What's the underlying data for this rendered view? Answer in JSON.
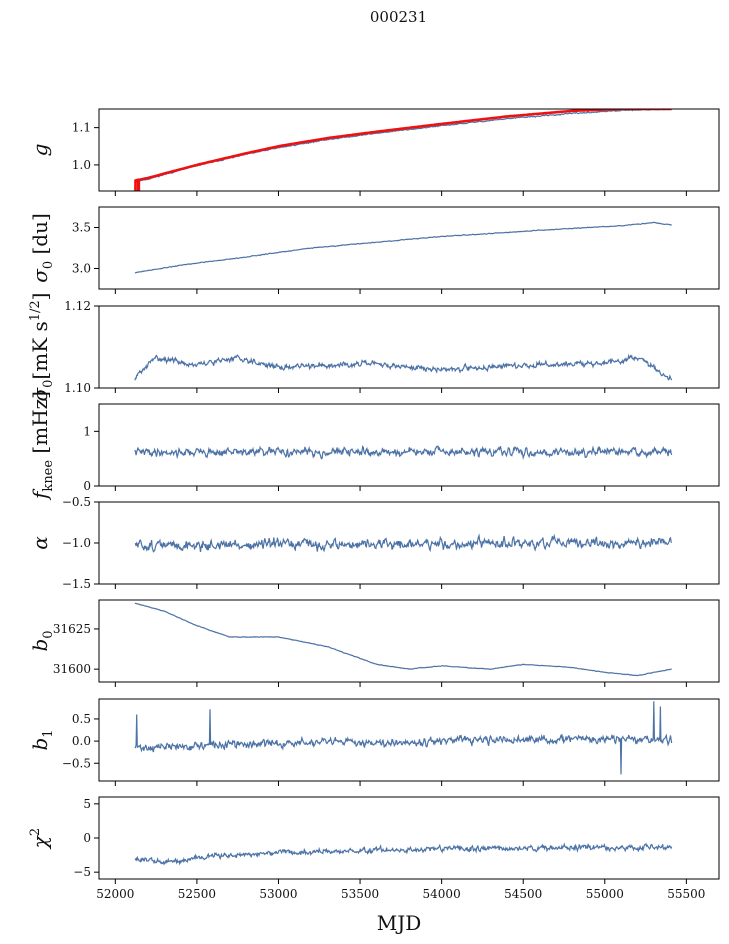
{
  "figure": {
    "title": "000231"
  },
  "colors": {
    "line": "#4c72a6",
    "red_overlay": "#ee1111",
    "axis": "#000000"
  },
  "chart_data": {
    "type": "line",
    "shared_x": {
      "label": "MJD",
      "range": [
        51900,
        55700
      ],
      "ticks": [
        52000,
        52500,
        53000,
        53500,
        54000,
        54500,
        55000,
        55500
      ],
      "tick_labels": [
        "52000",
        "52500",
        "53000",
        "53500",
        "54000",
        "54500",
        "55000",
        "55500"
      ],
      "data_start": 52120,
      "data_end": 55410
    },
    "panels": [
      {
        "id": "g",
        "ylabel": "g",
        "ylabel_html": "<tspan font-style='italic'>g</tspan>",
        "ylim": [
          0.93,
          1.15
        ],
        "yticks": [
          1.0,
          1.1
        ],
        "ytick_labels": [
          "1.0",
          "1.1"
        ],
        "trend": [
          [
            52120,
            0.955
          ],
          [
            52200,
            0.962
          ],
          [
            52500,
            0.998
          ],
          [
            52800,
            1.028
          ],
          [
            53000,
            1.046
          ],
          [
            53300,
            1.068
          ],
          [
            53600,
            1.085
          ],
          [
            54000,
            1.105
          ],
          [
            54400,
            1.124
          ],
          [
            54800,
            1.138
          ],
          [
            55100,
            1.146
          ],
          [
            55410,
            1.15
          ]
        ],
        "noise": 0.002,
        "seed": 11,
        "red_overlay": {
          "trend": [
            [
              52120,
              0.958
            ],
            [
              52200,
              0.965
            ],
            [
              52500,
              1.0
            ],
            [
              52800,
              1.031
            ],
            [
              53000,
              1.05
            ],
            [
              53300,
              1.072
            ],
            [
              53600,
              1.089
            ],
            [
              54000,
              1.11
            ],
            [
              54400,
              1.13
            ],
            [
              54800,
              1.145
            ],
            [
              55100,
              1.15
            ],
            [
              55410,
              1.15
            ]
          ],
          "spike": {
            "x": 52140,
            "y_from": 0.93,
            "y_to": 0.96
          }
        }
      },
      {
        "id": "sigma0_du",
        "ylabel": "σ0 [du]",
        "ylim": [
          2.75,
          3.75
        ],
        "yticks": [
          3.0,
          3.5
        ],
        "ytick_labels": [
          "3.0",
          "3.5"
        ],
        "trend": [
          [
            52120,
            2.95
          ],
          [
            52400,
            3.04
          ],
          [
            52800,
            3.14
          ],
          [
            53200,
            3.25
          ],
          [
            53600,
            3.32
          ],
          [
            54000,
            3.39
          ],
          [
            54400,
            3.44
          ],
          [
            54800,
            3.49
          ],
          [
            55100,
            3.52
          ],
          [
            55300,
            3.56
          ],
          [
            55410,
            3.53
          ]
        ],
        "noise": 0.006,
        "seed": 21
      },
      {
        "id": "sigma0_mK",
        "ylabel": "σ0[mK s^1/2]",
        "ylim": [
          1.1,
          1.12
        ],
        "yticks": [
          1.1,
          1.12
        ],
        "ytick_labels": [
          "1.10",
          "1.12"
        ],
        "trend": [
          [
            52120,
            1.1025
          ],
          [
            52250,
            1.1075
          ],
          [
            52500,
            1.1055
          ],
          [
            52750,
            1.1075
          ],
          [
            53000,
            1.105
          ],
          [
            53500,
            1.106
          ],
          [
            54000,
            1.1045
          ],
          [
            54500,
            1.1055
          ],
          [
            55000,
            1.106
          ],
          [
            55200,
            1.1075
          ],
          [
            55410,
            1.102
          ]
        ],
        "noise": 0.0009,
        "seed": 31
      },
      {
        "id": "fknee",
        "ylabel": "f_knee [mHz]",
        "ylim": [
          0,
          1.5
        ],
        "yticks": [
          0,
          1
        ],
        "ytick_labels": [
          "0",
          "1"
        ],
        "trend": [
          [
            52120,
            0.62
          ],
          [
            55410,
            0.62
          ]
        ],
        "noise": 0.1,
        "seed": 41
      },
      {
        "id": "alpha",
        "ylabel": "α",
        "ylim": [
          -1.5,
          -0.5
        ],
        "yticks": [
          -1.5,
          -1.0,
          -0.5
        ],
        "ytick_labels": [
          "−1.5",
          "−1.0",
          "−0.5"
        ],
        "trend": [
          [
            52120,
            -1.03
          ],
          [
            55410,
            -1.0
          ]
        ],
        "noise": 0.085,
        "seed": 51
      },
      {
        "id": "b0",
        "ylabel": "b0",
        "ylim": [
          31592,
          31643
        ],
        "yticks": [
          31600,
          31625
        ],
        "ytick_labels": [
          "31600",
          "31625"
        ],
        "trend": [
          [
            52120,
            31641
          ],
          [
            52300,
            31636
          ],
          [
            52500,
            31627
          ],
          [
            52700,
            31620
          ],
          [
            53000,
            31620
          ],
          [
            53300,
            31614
          ],
          [
            53600,
            31603
          ],
          [
            53800,
            31600
          ],
          [
            54000,
            31602
          ],
          [
            54300,
            31600
          ],
          [
            54500,
            31603
          ],
          [
            54800,
            31601
          ],
          [
            55000,
            31598
          ],
          [
            55200,
            31596
          ],
          [
            55410,
            31600
          ]
        ],
        "noise": 0.25,
        "seed": 61
      },
      {
        "id": "b1",
        "ylabel": "b1",
        "ylim": [
          -0.9,
          0.95
        ],
        "yticks": [
          -0.5,
          0.0,
          0.5
        ],
        "ytick_labels": [
          "−0.5",
          "0.0",
          "0.5"
        ],
        "trend": [
          [
            52120,
            -0.15
          ],
          [
            52400,
            -0.12
          ],
          [
            53000,
            -0.05
          ],
          [
            54000,
            0.0
          ],
          [
            55000,
            0.05
          ],
          [
            55410,
            0.02
          ]
        ],
        "noise": 0.12,
        "seed": 71,
        "spikes": [
          [
            52130,
            0.6
          ],
          [
            52580,
            0.72
          ],
          [
            55100,
            -0.75
          ],
          [
            55300,
            0.9
          ],
          [
            55340,
            0.78
          ]
        ]
      },
      {
        "id": "chi2",
        "ylabel": "χ2",
        "ylim": [
          -6,
          6
        ],
        "yticks": [
          -5,
          0,
          5
        ],
        "ytick_labels": [
          "−5",
          "0",
          "5"
        ],
        "trend": [
          [
            52120,
            -3.0
          ],
          [
            52300,
            -3.6
          ],
          [
            52600,
            -2.6
          ],
          [
            53200,
            -2.0
          ],
          [
            54000,
            -1.6
          ],
          [
            55000,
            -1.4
          ],
          [
            55410,
            -1.5
          ]
        ],
        "noise": 0.55,
        "seed": 81
      }
    ]
  }
}
